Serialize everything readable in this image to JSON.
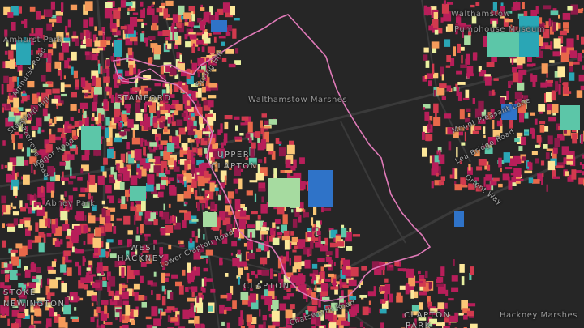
{
  "map": {
    "labels": {
      "amhurst_park": "Amhurst Park",
      "walthamstow_pumphouse_1": "Walthamstow",
      "walthamstow_pumphouse_2": "Pumphouse Museum",
      "walthamstow_marshes": "Walthamstow Marshes",
      "stamford": "STAMFORD",
      "spring_hill": "Spring Hill",
      "upper_clapton_1": "UPPER",
      "upper_clapton_2": "CLAPTON",
      "lea_bridge_road": "Lea Bridge Road",
      "orient_way": "Orient Way",
      "abney_park": "Abney Park",
      "manor_road": "Manor Road",
      "west_hackney_1": "WEST",
      "west_hackney_2": "HACKNEY",
      "clapton": "CLAPTON",
      "stoke_newington_1": "STOKE",
      "stoke_newington_2": "NEWINGTON",
      "clapton_park_1": "CLAPTON",
      "clapton_park_2": "PARK",
      "hackney_marshes": "Hackney Marshes",
      "amhurst_road": "Amhurst Road",
      "stamford_hill": "Stamford Hill",
      "cazenove_road": "Cazenove Road",
      "lower_clapton_road": "Lower Clapton Road",
      "chatsworth_road": "Chatsworth Road",
      "mount_pleasant_lane": "Mount Pleasant Lane"
    },
    "colors": {
      "background": "#262626",
      "road": "#3a3a3a",
      "boundary": "#e07ab8",
      "palette": [
        "#b81e5a",
        "#d23a4e",
        "#e8684a",
        "#f59a5a",
        "#fbc877",
        "#fde89a",
        "#e8f0a0",
        "#a6dba0",
        "#5cc6a8",
        "#2aa6b5",
        "#2f73c8",
        "#8e1a4a"
      ]
    }
  }
}
